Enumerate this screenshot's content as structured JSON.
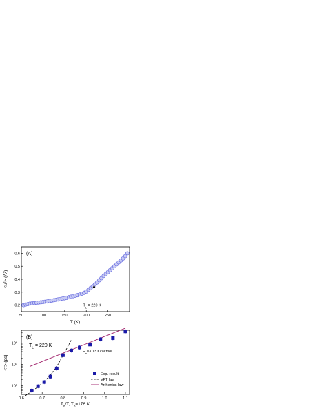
{
  "chart_data": [
    {
      "type": "scatter",
      "panel_label": "(A)",
      "xlabel": "T (K)",
      "ylabel": "<u²> (Å²)",
      "xlim": [
        50,
        300
      ],
      "ylim": [
        0.15,
        0.65
      ],
      "xticks": [
        "50",
        "100",
        "150",
        "200",
        "250"
      ],
      "yticks": [
        "0.2",
        "0.3",
        "0.4",
        "0.5",
        "0.6"
      ],
      "annotation": {
        "text": "T",
        "sub": "L",
        "rest": " = 220 K",
        "arrow_x": 218
      },
      "marker_color": "#6a6fe0",
      "series": [
        {
          "x": [
            55,
            60,
            65,
            70,
            75,
            80,
            85,
            90,
            95,
            100,
            105,
            110,
            115,
            120,
            125,
            130,
            135,
            140,
            145,
            150,
            155,
            160,
            165,
            170,
            175,
            180,
            185,
            190,
            195,
            200,
            205,
            210,
            215,
            220,
            225,
            230,
            235,
            240,
            245,
            250,
            255,
            260,
            265,
            270,
            275,
            280,
            285,
            290,
            295
          ],
          "y": [
            0.2,
            0.205,
            0.208,
            0.212,
            0.214,
            0.216,
            0.218,
            0.22,
            0.222,
            0.224,
            0.227,
            0.229,
            0.232,
            0.235,
            0.238,
            0.241,
            0.244,
            0.247,
            0.25,
            0.253,
            0.257,
            0.261,
            0.265,
            0.269,
            0.273,
            0.277,
            0.282,
            0.288,
            0.295,
            0.305,
            0.318,
            0.332,
            0.345,
            0.36,
            0.375,
            0.392,
            0.408,
            0.425,
            0.44,
            0.455,
            0.47,
            0.485,
            0.5,
            0.515,
            0.53,
            0.545,
            0.56,
            0.578,
            0.6
          ]
        }
      ]
    },
    {
      "type": "scatter",
      "panel_label": "(B)",
      "xlabel": "T0/T, T0=176 K",
      "xlabel_parts": {
        "a": "T",
        "a_sub": "0",
        "b": "/T, T",
        "b_sub": "0",
        "c": "=176 K"
      },
      "ylabel": "<τ> (ps)",
      "ylabel_parts": {
        "a": "<",
        "tau": "τ",
        "b": "> (ps)"
      },
      "xlim": [
        0.6,
        1.12
      ],
      "ylim_log10": [
        1.6,
        4.6
      ],
      "xticks": [
        "0.6",
        "0.7",
        "0.8",
        "0.9",
        "1.0",
        "1.1"
      ],
      "xtick_values": [
        0.6,
        0.7,
        0.8,
        0.9,
        1.0,
        1.1
      ],
      "yticks": [
        {
          "base": "10",
          "exp": "2",
          "v": 2
        },
        {
          "base": "10",
          "exp": "3",
          "v": 3
        },
        {
          "base": "10",
          "exp": "4",
          "v": 4
        }
      ],
      "tl_label": {
        "text": "T",
        "sub": "L",
        "rest": " = 220 K"
      },
      "ea_label": {
        "text": "E",
        "sub": "a",
        "rest": "=3.13 Kcal/mol"
      },
      "colors": {
        "exp": "#1a1aa8",
        "arrhenius": "#a0206a",
        "vft": "#000000",
        "text_blue": "#2a2aa0"
      },
      "series": [
        {
          "name": "Exp. result",
          "x": [
            0.65,
            0.68,
            0.71,
            0.74,
            0.77,
            0.8,
            0.84,
            0.88,
            0.93,
            0.98,
            1.04,
            1.1
          ],
          "y": [
            60,
            95,
            150,
            270,
            650,
            2700,
            4500,
            6200,
            8500,
            15000,
            17000,
            35000
          ]
        },
        {
          "name": "VFT law",
          "x": [
            0.62,
            0.65,
            0.68,
            0.71,
            0.74,
            0.77,
            0.8,
            0.82,
            0.84
          ],
          "y": [
            35,
            55,
            90,
            160,
            320,
            800,
            2600,
            6000,
            14000
          ]
        },
        {
          "name": "Arrhenius law",
          "x": [
            0.64,
            1.1
          ],
          "y": [
            800,
            50000
          ]
        }
      ],
      "legend": [
        "Exp. result",
        "VFT law",
        "Arrhenius law"
      ]
    }
  ]
}
